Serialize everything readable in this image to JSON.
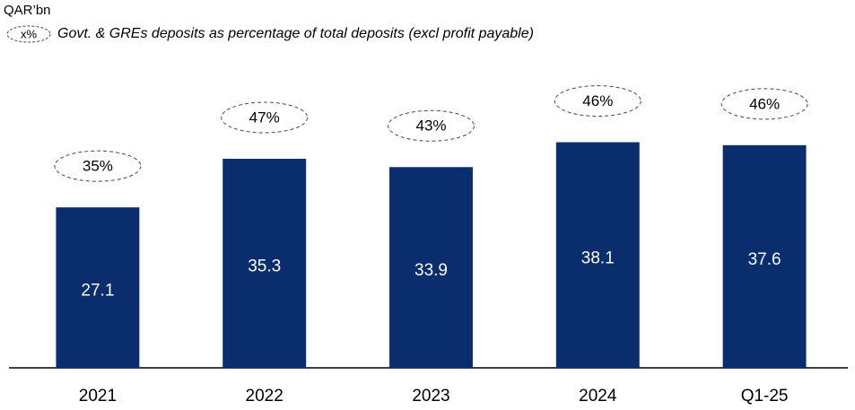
{
  "chart_data": {
    "type": "bar",
    "unit_label": "QAR’bn",
    "legend_symbol": "x%",
    "legend_text": "Govt. & GREs deposits as percentage of total deposits  (excl profit payable)",
    "categories": [
      "2021",
      "2022",
      "2023",
      "2024",
      "Q1-25"
    ],
    "values": [
      27.1,
      35.3,
      33.9,
      38.1,
      37.6
    ],
    "color": "#0a2d6e",
    "shares": [
      35,
      47,
      43,
      46,
      46
    ],
    "share_labels": [
      "35%",
      "47%",
      "43%",
      "46%",
      "46%"
    ],
    "ylim": [
      0,
      60
    ]
  }
}
